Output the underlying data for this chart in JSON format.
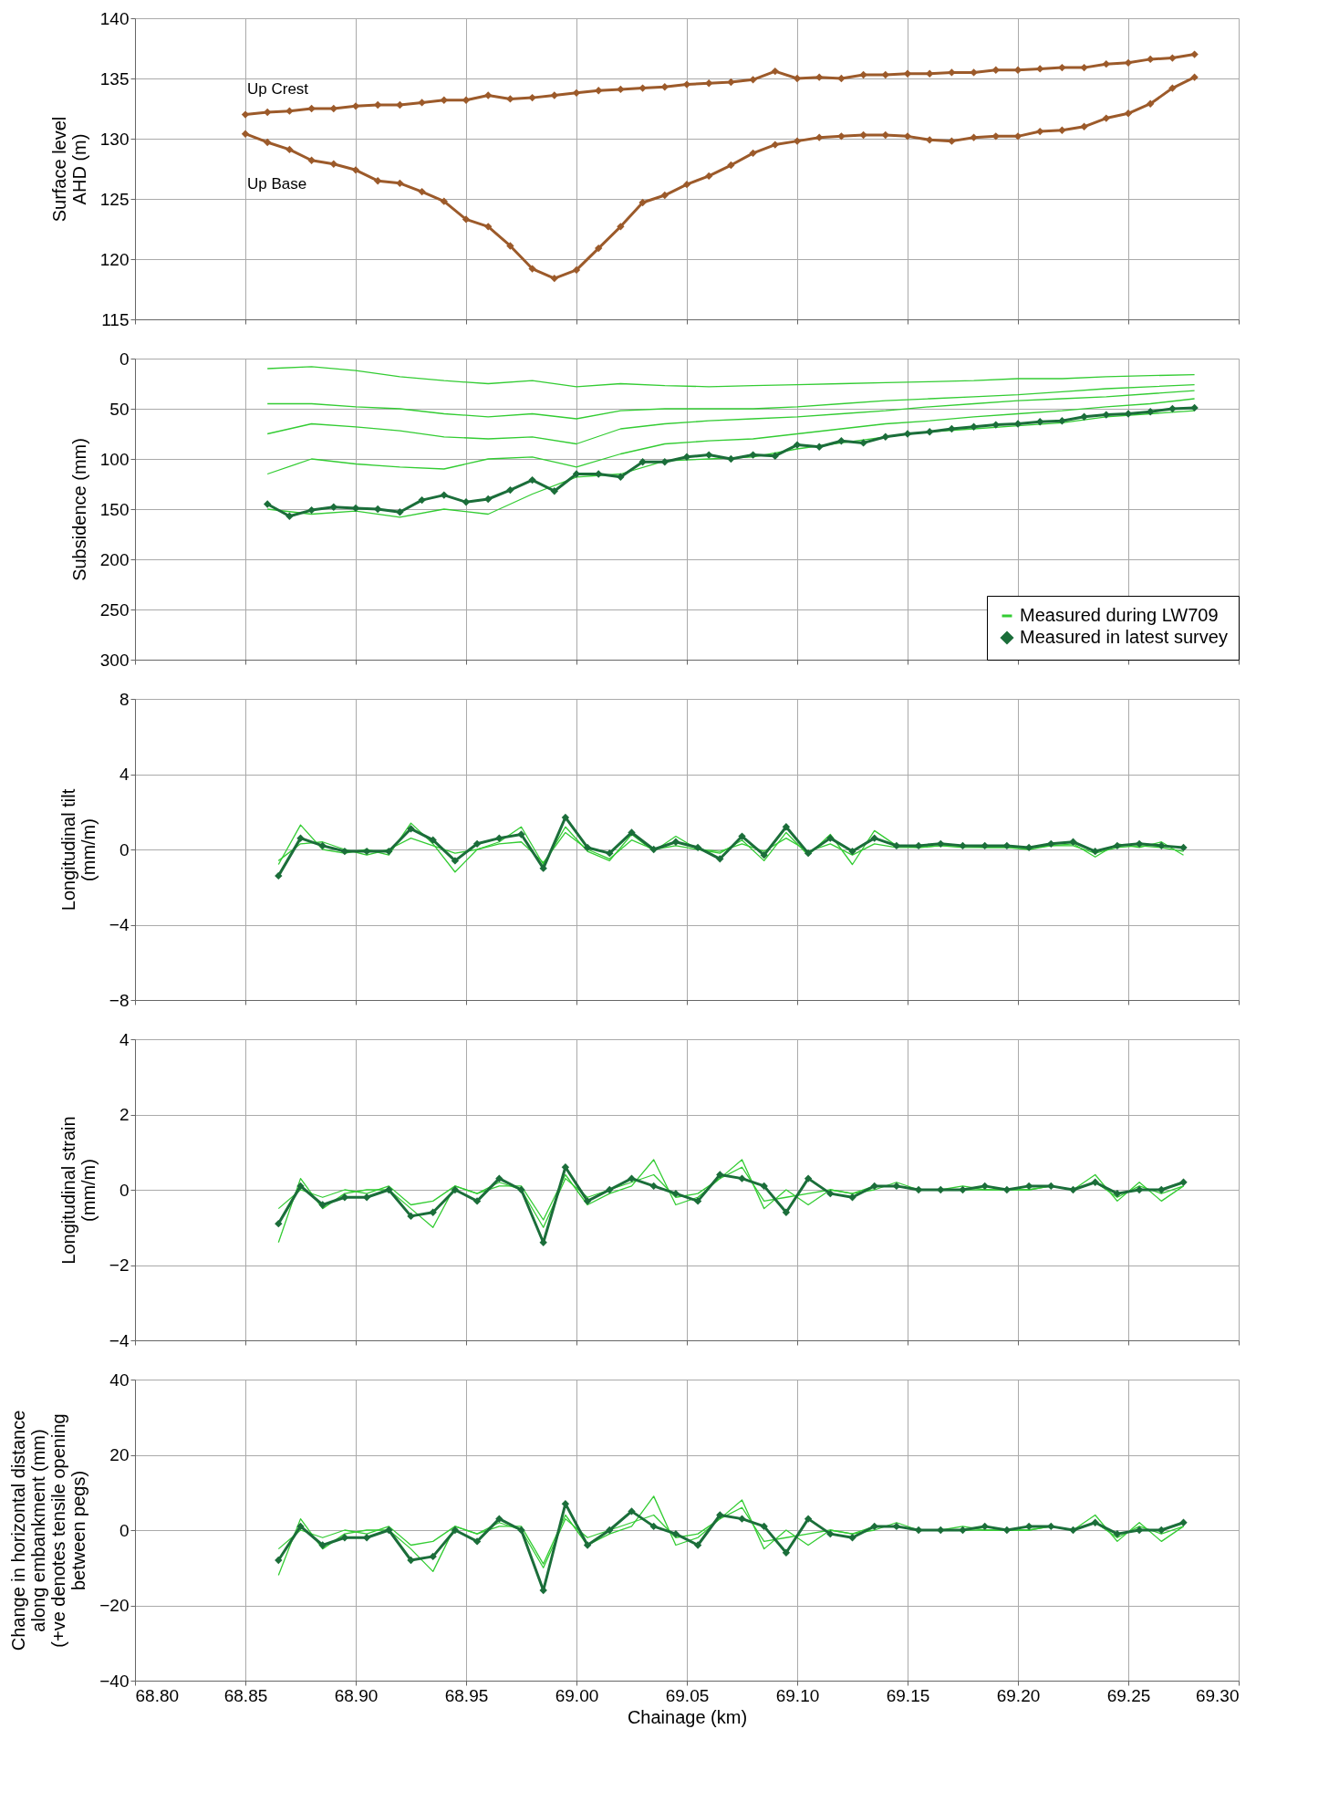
{
  "chart_data": [
    {
      "type": "line",
      "ylabel": "Surface level\nAHD (m)",
      "xlim": [
        68.8,
        69.3
      ],
      "xticks": [
        68.8,
        68.85,
        68.9,
        68.95,
        69.0,
        69.05,
        69.1,
        69.15,
        69.2,
        69.25,
        69.3
      ],
      "ylim": [
        115,
        140
      ],
      "yticks": [
        115,
        120,
        125,
        130,
        135,
        140
      ],
      "grid": true,
      "tick_labels": "y",
      "legend": false,
      "x": [
        68.85,
        68.86,
        68.87,
        68.88,
        68.89,
        68.9,
        68.91,
        68.92,
        68.93,
        68.94,
        68.95,
        68.96,
        68.97,
        68.98,
        68.99,
        69.0,
        69.01,
        69.02,
        69.03,
        69.04,
        69.05,
        69.06,
        69.07,
        69.08,
        69.09,
        69.1,
        69.11,
        69.12,
        69.13,
        69.14,
        69.15,
        69.16,
        69.17,
        69.18,
        69.19,
        69.2,
        69.21,
        69.22,
        69.23,
        69.24,
        69.25,
        69.26,
        69.27,
        69.28
      ],
      "series": [
        {
          "name": "Up Crest",
          "color": "#9c5a2a",
          "marker": "diamond",
          "values": [
            132.0,
            132.2,
            132.3,
            132.5,
            132.5,
            132.7,
            132.8,
            132.8,
            133.0,
            133.2,
            133.2,
            133.6,
            133.3,
            133.4,
            133.6,
            133.8,
            134.0,
            134.1,
            134.2,
            134.3,
            134.5,
            134.6,
            134.7,
            134.9,
            135.6,
            135.0,
            135.1,
            135.0,
            135.3,
            135.3,
            135.4,
            135.4,
            135.5,
            135.5,
            135.7,
            135.7,
            135.8,
            135.9,
            135.9,
            136.2,
            136.3,
            136.6,
            136.7,
            137.0
          ]
        },
        {
          "name": "Up Base",
          "color": "#9c5a2a",
          "marker": "diamond",
          "values": [
            130.4,
            129.7,
            129.1,
            128.2,
            127.9,
            127.4,
            126.5,
            126.3,
            125.6,
            124.8,
            123.3,
            122.7,
            121.1,
            119.2,
            118.4,
            119.1,
            120.9,
            122.7,
            124.7,
            125.3,
            126.2,
            126.9,
            127.8,
            128.8,
            129.5,
            129.8,
            130.1,
            130.2,
            130.3,
            130.3,
            130.2,
            129.9,
            129.8,
            130.1,
            130.2,
            130.2,
            130.6,
            130.7,
            131.0,
            131.7,
            132.1,
            132.9,
            134.2,
            135.1
          ]
        }
      ]
    },
    {
      "type": "line",
      "ylabel": "Subsidence (mm)",
      "xlim": [
        68.8,
        69.3
      ],
      "xticks": [
        68.8,
        68.85,
        68.9,
        68.95,
        69.0,
        69.05,
        69.1,
        69.15,
        69.2,
        69.25,
        69.3
      ],
      "ylim": [
        300,
        0
      ],
      "yticks": [
        0,
        50,
        100,
        150,
        200,
        250,
        300
      ],
      "grid": true,
      "tick_labels": "y",
      "legend": "bottom right",
      "x": [
        68.86,
        68.88,
        68.9,
        68.92,
        68.94,
        68.96,
        68.98,
        69.0,
        69.02,
        69.04,
        69.06,
        69.08,
        69.1,
        69.12,
        69.14,
        69.16,
        69.18,
        69.2,
        69.22,
        69.24,
        69.26,
        69.28
      ],
      "series": [
        {
          "name": "Measured during LW709",
          "color": "#33cc33",
          "marker": "none",
          "values": [
            10,
            8,
            12,
            18,
            22,
            25,
            22,
            28,
            25,
            27,
            28,
            27,
            26,
            25,
            24,
            23,
            22,
            20,
            20,
            18,
            17,
            16
          ]
        },
        {
          "color": "#33cc33",
          "marker": "none",
          "values": [
            45,
            45,
            48,
            50,
            55,
            58,
            55,
            60,
            52,
            50,
            50,
            50,
            48,
            45,
            42,
            40,
            38,
            36,
            33,
            30,
            28,
            26
          ]
        },
        {
          "color": "#33cc33",
          "marker": "none",
          "values": [
            75,
            65,
            68,
            72,
            78,
            80,
            78,
            85,
            70,
            65,
            62,
            60,
            58,
            55,
            52,
            48,
            45,
            42,
            40,
            38,
            35,
            32
          ]
        },
        {
          "color": "#33cc33",
          "marker": "none",
          "values": [
            115,
            100,
            105,
            108,
            110,
            100,
            98,
            108,
            95,
            85,
            82,
            80,
            75,
            70,
            65,
            62,
            58,
            55,
            52,
            48,
            45,
            40
          ]
        },
        {
          "color": "#33cc33",
          "marker": "none",
          "values": [
            150,
            155,
            152,
            158,
            150,
            155,
            135,
            118,
            115,
            102,
            100,
            98,
            90,
            84,
            78,
            73,
            70,
            67,
            64,
            58,
            55,
            52
          ]
        },
        {
          "name": "Measured in latest survey",
          "color": "#1b6e3a",
          "marker": "diamond",
          "x": [
            68.86,
            68.87,
            68.88,
            68.89,
            68.9,
            68.91,
            68.92,
            68.93,
            68.94,
            68.95,
            68.96,
            68.97,
            68.98,
            68.99,
            69.0,
            69.01,
            69.02,
            69.03,
            69.04,
            69.05,
            69.06,
            69.07,
            69.08,
            69.09,
            69.1,
            69.11,
            69.12,
            69.13,
            69.14,
            69.15,
            69.16,
            69.17,
            69.18,
            69.19,
            69.2,
            69.21,
            69.22,
            69.23,
            69.24,
            69.25,
            69.26,
            69.27,
            69.28
          ],
          "values": [
            145,
            157,
            151,
            148,
            149,
            150,
            153,
            141,
            136,
            143,
            140,
            131,
            121,
            132,
            115,
            115,
            118,
            103,
            103,
            98,
            96,
            100,
            96,
            97,
            86,
            88,
            82,
            84,
            78,
            75,
            73,
            70,
            68,
            66,
            65,
            63,
            62,
            58,
            56,
            55,
            53,
            50,
            49
          ]
        }
      ]
    },
    {
      "type": "line",
      "ylabel": "Longitudinal tilt\n(mm/m)",
      "xlim": [
        68.8,
        69.3
      ],
      "xticks": [
        68.8,
        68.85,
        68.9,
        68.95,
        69.0,
        69.05,
        69.1,
        69.15,
        69.2,
        69.25,
        69.3
      ],
      "ylim": [
        -8,
        8
      ],
      "yticks": [
        -8,
        -4,
        0,
        4,
        8
      ],
      "grid": true,
      "tick_labels": "y",
      "legend": false,
      "x": [
        68.865,
        68.875,
        68.885,
        68.895,
        68.905,
        68.915,
        68.925,
        68.935,
        68.945,
        68.955,
        68.965,
        68.975,
        68.985,
        68.995,
        69.005,
        69.015,
        69.025,
        69.035,
        69.045,
        69.055,
        69.065,
        69.075,
        69.085,
        69.095,
        69.105,
        69.115,
        69.125,
        69.135,
        69.145,
        69.155,
        69.165,
        69.175,
        69.185,
        69.195,
        69.205,
        69.215,
        69.225,
        69.235,
        69.245,
        69.255,
        69.265,
        69.275
      ],
      "series": [
        {
          "color": "#33cc33",
          "marker": "none",
          "values": [
            -0.8,
            1.3,
            0.0,
            -0.2,
            0.0,
            -0.3,
            1.4,
            0.3,
            -1.2,
            0.0,
            0.4,
            1.2,
            -0.8,
            1.2,
            -0.1,
            -0.6,
            0.8,
            -0.1,
            0.7,
            0.0,
            -0.2,
            0.5,
            -0.6,
            0.9,
            -0.3,
            0.8,
            -0.8,
            1.0,
            0.2,
            0.1,
            0.2,
            0.2,
            0.1,
            0.1,
            0.1,
            0.2,
            0.3,
            -0.4,
            0.3,
            0.1,
            0.4,
            -0.3
          ]
        },
        {
          "color": "#33cc33",
          "marker": "none",
          "values": [
            -0.6,
            0.3,
            0.4,
            0.0,
            -0.3,
            0.0,
            0.6,
            0.2,
            -0.2,
            0.0,
            0.3,
            0.4,
            -0.7,
            0.9,
            0.0,
            -0.5,
            0.5,
            0.0,
            0.2,
            0.0,
            -0.1,
            0.3,
            -0.1,
            0.6,
            -0.1,
            0.3,
            -0.3,
            0.3,
            0.1,
            0.1,
            0.2,
            0.1,
            0.1,
            0.1,
            0.0,
            0.2,
            0.2,
            -0.2,
            0.1,
            0.2,
            0.1,
            -0.1
          ]
        },
        {
          "color": "#1b6e3a",
          "marker": "diamond",
          "values": [
            -1.4,
            0.6,
            0.2,
            -0.1,
            -0.1,
            -0.1,
            1.1,
            0.5,
            -0.6,
            0.3,
            0.6,
            0.8,
            -1.0,
            1.7,
            0.1,
            -0.2,
            0.9,
            0.0,
            0.4,
            0.1,
            -0.5,
            0.7,
            -0.3,
            1.2,
            -0.2,
            0.6,
            -0.1,
            0.6,
            0.2,
            0.2,
            0.3,
            0.2,
            0.2,
            0.2,
            0.1,
            0.3,
            0.4,
            -0.1,
            0.2,
            0.3,
            0.2,
            0.1
          ]
        }
      ]
    },
    {
      "type": "line",
      "ylabel": "Longitudinal strain\n(mm/m)",
      "xlim": [
        68.8,
        69.3
      ],
      "xticks": [
        68.8,
        68.85,
        68.9,
        68.95,
        69.0,
        69.05,
        69.1,
        69.15,
        69.2,
        69.25,
        69.3
      ],
      "ylim": [
        -4,
        4
      ],
      "yticks": [
        -4,
        -2,
        0,
        2,
        4
      ],
      "grid": true,
      "tick_labels": "y",
      "legend": false,
      "x": [
        68.865,
        68.875,
        68.885,
        68.895,
        68.905,
        68.915,
        68.925,
        68.935,
        68.945,
        68.955,
        68.965,
        68.975,
        68.985,
        68.995,
        69.005,
        69.015,
        69.025,
        69.035,
        69.045,
        69.055,
        69.065,
        69.075,
        69.085,
        69.095,
        69.105,
        69.115,
        69.125,
        69.135,
        69.145,
        69.155,
        69.165,
        69.175,
        69.185,
        69.195,
        69.205,
        69.215,
        69.225,
        69.235,
        69.245,
        69.255,
        69.265,
        69.275
      ],
      "series": [
        {
          "color": "#33cc33",
          "marker": "none",
          "values": [
            -1.4,
            0.3,
            -0.5,
            -0.1,
            0.0,
            0.0,
            -0.5,
            -1.0,
            0.1,
            -0.1,
            0.1,
            0.1,
            -0.8,
            0.4,
            -0.4,
            -0.1,
            0.1,
            0.8,
            -0.4,
            -0.2,
            0.3,
            0.8,
            -0.5,
            0.0,
            -0.4,
            0.0,
            -0.1,
            0.0,
            0.2,
            0.0,
            0.0,
            0.0,
            0.0,
            0.0,
            0.0,
            0.1,
            0.0,
            0.4,
            -0.3,
            0.2,
            -0.3,
            0.1
          ]
        },
        {
          "color": "#33cc33",
          "marker": "none",
          "values": [
            -0.5,
            0.0,
            -0.2,
            0.0,
            -0.1,
            0.1,
            -0.4,
            -0.3,
            0.1,
            -0.1,
            0.2,
            0.0,
            -1.0,
            0.3,
            -0.2,
            0.0,
            0.2,
            0.4,
            -0.2,
            -0.1,
            0.3,
            0.6,
            -0.3,
            -0.2,
            -0.1,
            0.0,
            -0.1,
            0.1,
            0.1,
            0.0,
            0.0,
            0.1,
            0.0,
            0.0,
            0.0,
            0.1,
            0.0,
            0.2,
            -0.2,
            0.1,
            -0.1,
            0.1
          ]
        },
        {
          "color": "#1b6e3a",
          "marker": "diamond",
          "values": [
            -0.9,
            0.1,
            -0.4,
            -0.2,
            -0.2,
            0.0,
            -0.7,
            -0.6,
            0.0,
            -0.3,
            0.3,
            0.0,
            -1.4,
            0.6,
            -0.3,
            0.0,
            0.3,
            0.1,
            -0.1,
            -0.3,
            0.4,
            0.3,
            0.1,
            -0.6,
            0.3,
            -0.1,
            -0.2,
            0.1,
            0.1,
            0.0,
            0.0,
            0.0,
            0.1,
            0.0,
            0.1,
            0.1,
            0.0,
            0.2,
            -0.1,
            0.0,
            0.0,
            0.2
          ]
        }
      ]
    },
    {
      "type": "line",
      "ylabel": "Change in horizontal distance\nalong embankment (mm)\n(+ve denotes tensile opening\nbetween pegs)",
      "xlabel": "Chainage (km)",
      "xlim": [
        68.8,
        69.3
      ],
      "xticks": [
        {
          "value": 68.8,
          "label": "68.80"
        },
        {
          "value": 68.85,
          "label": "68.85"
        },
        {
          "value": 68.9,
          "label": "68.90"
        },
        {
          "value": 68.95,
          "label": "68.95"
        },
        {
          "value": 69.0,
          "label": "69.00"
        },
        {
          "value": 69.05,
          "label": "69.05"
        },
        {
          "value": 69.1,
          "label": "69.10"
        },
        {
          "value": 69.15,
          "label": "69.15"
        },
        {
          "value": 69.2,
          "label": "69.20"
        },
        {
          "value": 69.25,
          "label": "69.25"
        },
        {
          "value": 69.3,
          "label": "69.30"
        }
      ],
      "ylim": [
        -40,
        40
      ],
      "yticks": [
        -40,
        -20,
        0,
        20,
        40
      ],
      "grid": true,
      "legend": false,
      "x": [
        68.865,
        68.875,
        68.885,
        68.895,
        68.905,
        68.915,
        68.925,
        68.935,
        68.945,
        68.955,
        68.965,
        68.975,
        68.985,
        68.995,
        69.005,
        69.015,
        69.025,
        69.035,
        69.045,
        69.055,
        69.065,
        69.075,
        69.085,
        69.095,
        69.105,
        69.115,
        69.125,
        69.135,
        69.145,
        69.155,
        69.165,
        69.175,
        69.185,
        69.195,
        69.205,
        69.215,
        69.225,
        69.235,
        69.245,
        69.255,
        69.265,
        69.275
      ],
      "series": [
        {
          "color": "#33cc33",
          "marker": "none",
          "values": [
            -12,
            3,
            -5,
            -1,
            0,
            0,
            -5,
            -11,
            1,
            -1,
            1,
            1,
            -9,
            4,
            -4,
            -1,
            1,
            9,
            -4,
            -2,
            3,
            8,
            -5,
            0,
            -4,
            0,
            -1,
            0,
            2,
            0,
            0,
            0,
            0,
            0,
            0,
            1,
            0,
            4,
            -3,
            2,
            -3,
            1
          ]
        },
        {
          "color": "#33cc33",
          "marker": "none",
          "values": [
            -5,
            0,
            -2,
            0,
            -1,
            1,
            -4,
            -3,
            1,
            -1,
            2,
            0,
            -10,
            3,
            -2,
            0,
            2,
            4,
            -2,
            -1,
            3,
            6,
            -3,
            -2,
            -1,
            0,
            -1,
            1,
            1,
            0,
            0,
            1,
            0,
            0,
            0,
            1,
            0,
            2,
            -2,
            1,
            -1,
            1
          ]
        },
        {
          "color": "#1b6e3a",
          "marker": "diamond",
          "values": [
            -8,
            1,
            -4,
            -2,
            -2,
            0,
            -8,
            -7,
            0,
            -3,
            3,
            0,
            -16,
            7,
            -4,
            0,
            5,
            1,
            -1,
            -4,
            4,
            3,
            1,
            -6,
            3,
            -1,
            -2,
            1,
            1,
            0,
            0,
            0,
            1,
            0,
            1,
            1,
            0,
            2,
            -1,
            0,
            0,
            2
          ]
        }
      ]
    }
  ]
}
